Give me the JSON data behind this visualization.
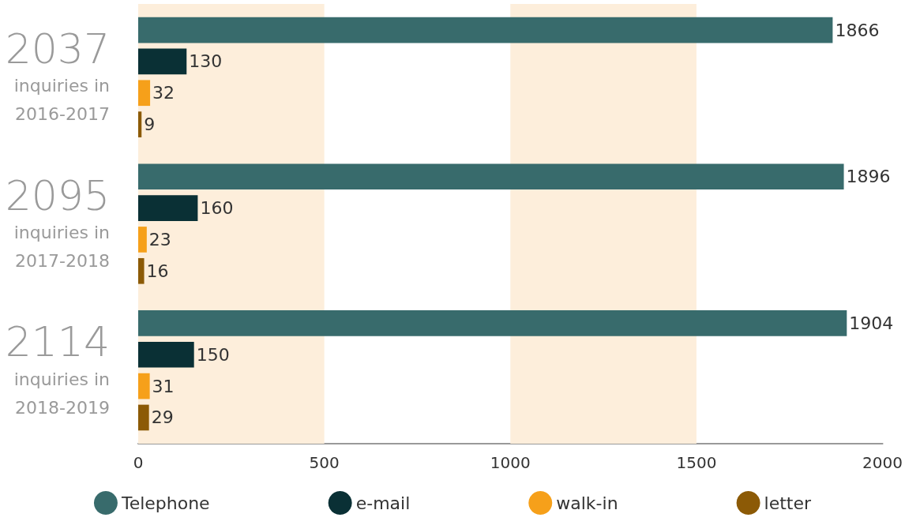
{
  "chart_data": {
    "type": "bar",
    "orientation": "horizontal",
    "categories": [
      "2037\ninquiries in\n2016-2017",
      "2095\ninquiries in\n2017-2018",
      "2114\ninquiries in\n2018-2019"
    ],
    "series": [
      {
        "name": "Telephone",
        "color": "#386b6c",
        "values": [
          1866,
          1896,
          1904
        ]
      },
      {
        "name": "e-mail",
        "color": "#0a3035",
        "values": [
          130,
          160,
          150
        ]
      },
      {
        "name": "walk-in",
        "color": "#f6a01a",
        "values": [
          32,
          23,
          31
        ]
      },
      {
        "name": "letter",
        "color": "#8c5a06",
        "values": [
          9,
          16,
          29
        ]
      }
    ],
    "xlim": [
      0,
      2000
    ],
    "xticks": [
      0,
      500,
      1000,
      1500,
      2000
    ],
    "bands": [
      {
        "axis": "x",
        "from": 0,
        "to": 500,
        "color": "#fdeedb"
      },
      {
        "axis": "x",
        "from": 1000,
        "to": 1500,
        "color": "#fdeedb"
      }
    ],
    "data_labels": true,
    "grid": false,
    "legend": "bottom"
  }
}
